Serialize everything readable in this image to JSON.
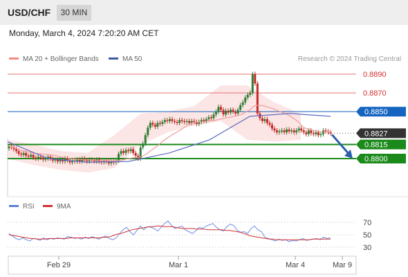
{
  "header": {
    "pair": "USD/CHF",
    "timeframe": "30 MIN"
  },
  "datetime": "Monday, March 4, 2024 7:20:20 AM CET",
  "legend": {
    "bb_label": "MA 20 + Bollinger Bands",
    "ma50_label": "MA 50",
    "credit": "Research © 2024 Trading Central"
  },
  "rsi_legend": {
    "rsi_label": "RSI",
    "ma_label": "9MA"
  },
  "colors": {
    "up": "#2e7d32",
    "down": "#c62828",
    "resistance": "#e57373",
    "ma50": "#3f51b5",
    "current": "#333333",
    "support": "#1b8a1b",
    "pivot": "#1565c0",
    "band": "#fbe1e1"
  },
  "chart_data": [
    {
      "type": "candlestick",
      "price_levels": [
        {
          "label": "0.8890",
          "value": 0.889,
          "kind": "resistance"
        },
        {
          "label": "0.8870",
          "value": 0.887,
          "kind": "resistance"
        },
        {
          "label": "0.8850",
          "value": 0.885,
          "kind": "pivot"
        },
        {
          "label": "0.8827",
          "value": 0.8827,
          "kind": "current"
        },
        {
          "label": "0.8815",
          "value": 0.8815,
          "kind": "support"
        },
        {
          "label": "0.8800",
          "value": 0.88,
          "kind": "support"
        }
      ],
      "x_ticks": [
        "Feb 29",
        "Mar 1",
        "Mar 4",
        "Mar 9"
      ],
      "close": [
        0.8813,
        0.8812,
        0.881,
        0.8808,
        0.8805,
        0.8804,
        0.8806,
        0.8803,
        0.8802,
        0.8804,
        0.8801,
        0.88,
        0.8802,
        0.8801,
        0.8799,
        0.88,
        0.8802,
        0.88,
        0.8798,
        0.8799,
        0.8797,
        0.8799,
        0.8797,
        0.88,
        0.8798,
        0.8796,
        0.8798,
        0.8797,
        0.8799,
        0.8797,
        0.88,
        0.8798,
        0.8797,
        0.8799,
        0.8798,
        0.8797,
        0.8799,
        0.8797,
        0.8796,
        0.8798,
        0.8797,
        0.8795,
        0.8797,
        0.8796,
        0.8798,
        0.8805,
        0.8808,
        0.8806,
        0.8809,
        0.8808,
        0.881,
        0.8806,
        0.8803,
        0.88,
        0.8812,
        0.8816,
        0.8825,
        0.8833,
        0.8838,
        0.8836,
        0.8834,
        0.8838,
        0.8837,
        0.8839,
        0.8841,
        0.884,
        0.8842,
        0.884,
        0.8839,
        0.8838,
        0.8841,
        0.884,
        0.8839,
        0.884,
        0.8838,
        0.884,
        0.8839,
        0.8837,
        0.8839,
        0.8841,
        0.884,
        0.8842,
        0.8844,
        0.8843,
        0.8847,
        0.885,
        0.8855,
        0.8852,
        0.8847,
        0.8851,
        0.8849,
        0.8852,
        0.885,
        0.8848,
        0.8852,
        0.8857,
        0.886,
        0.8865,
        0.8868,
        0.887,
        0.889,
        0.888,
        0.8848,
        0.8843,
        0.884,
        0.8842,
        0.8838,
        0.8836,
        0.8832,
        0.883,
        0.8828,
        0.8829,
        0.883,
        0.8828,
        0.8831,
        0.8829,
        0.883,
        0.8828,
        0.883,
        0.8832,
        0.883,
        0.8828,
        0.8826,
        0.883,
        0.8827,
        0.8826,
        0.8828,
        0.8825,
        0.8826,
        0.883,
        0.8829,
        0.8828,
        0.8827
      ],
      "ma50": [
        0.8818,
        0.88,
        0.8796,
        0.8797,
        0.8806,
        0.882,
        0.8845,
        0.8848,
        0.8845
      ],
      "bb_upper": [
        0.882,
        0.8815,
        0.8808,
        0.8806,
        0.8825,
        0.8848,
        0.885,
        0.8856,
        0.8878,
        0.8878,
        0.886,
        0.8848
      ],
      "bb_lower": [
        0.88,
        0.8793,
        0.8788,
        0.8785,
        0.879,
        0.8815,
        0.8828,
        0.8835,
        0.884,
        0.882,
        0.8818,
        0.882
      ],
      "forecast_arrow": {
        "from": 0.8827,
        "to": 0.88
      }
    },
    {
      "type": "line",
      "name": "RSI",
      "y_ticks": [
        70,
        50,
        30
      ],
      "ylim": [
        20,
        80
      ],
      "rsi": [
        52,
        48,
        44,
        42,
        45,
        42,
        40,
        44,
        43,
        41,
        45,
        42,
        44,
        43,
        45,
        44,
        43,
        47,
        46,
        44,
        45,
        43,
        46,
        44,
        47,
        45,
        43,
        46,
        48,
        44,
        42,
        45,
        52,
        58,
        62,
        55,
        50,
        57,
        64,
        58,
        63,
        62,
        60,
        56,
        62,
        68,
        72,
        65,
        60,
        62,
        64,
        58,
        55,
        52,
        56,
        62,
        60,
        64,
        66,
        68,
        62,
        58,
        56,
        63,
        67,
        65,
        57,
        54,
        55,
        52,
        60,
        64,
        58,
        55,
        46,
        44,
        42,
        40,
        43,
        41,
        42,
        39,
        41,
        40,
        42,
        44,
        41,
        42,
        43,
        44,
        42,
        46,
        44,
        45
      ],
      "ma9": [
        50,
        49,
        48,
        47,
        46,
        45,
        44,
        44,
        43,
        43,
        43,
        44,
        44,
        44,
        44,
        44,
        44,
        45,
        45,
        45,
        45,
        45,
        45,
        45,
        45,
        45,
        46,
        46,
        47,
        49,
        51,
        52,
        54,
        56,
        58,
        59,
        60,
        61,
        62,
        63,
        63,
        64,
        64,
        63,
        63,
        63,
        62,
        61,
        60,
        60,
        60,
        60,
        59,
        59,
        59,
        58,
        58,
        58,
        58,
        58,
        57,
        57,
        56,
        55,
        54,
        52,
        50,
        48,
        47,
        46,
        45,
        44,
        43,
        43,
        42,
        42,
        42,
        42,
        42,
        42,
        42,
        42,
        42,
        42,
        43,
        43,
        43,
        43,
        43,
        43
      ]
    }
  ]
}
